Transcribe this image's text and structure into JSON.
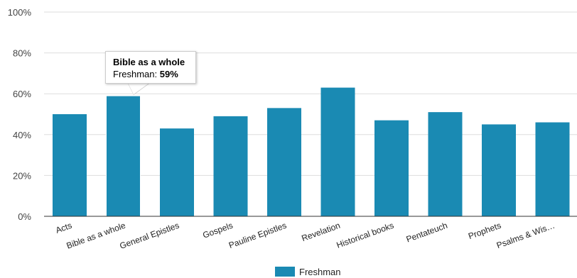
{
  "chart_data": {
    "type": "bar",
    "categories": [
      "Acts",
      "Bible as a whole",
      "General Epistles",
      "Gospels",
      "Pauline Epistles",
      "Revelation",
      "Historical books",
      "Pentateuch",
      "Prophets",
      "Psalms & Wis…"
    ],
    "series": [
      {
        "name": "Freshman",
        "values": [
          50,
          59,
          43,
          49,
          53,
          63,
          47,
          51,
          45,
          46
        ]
      }
    ],
    "ylim": [
      0,
      100
    ],
    "yticks": [
      "0%",
      "20%",
      "40%",
      "60%",
      "80%",
      "100%"
    ],
    "ytick_values": [
      0,
      20,
      40,
      60,
      80,
      100
    ],
    "grid": true,
    "legend": "bottom",
    "colors": {
      "bar": "#1a8ab3",
      "bar_highlight": "#1a8ab3",
      "grid": "#dddddd",
      "axis": "#333333"
    }
  },
  "tooltip": {
    "title": "Bible as a whole",
    "series_label": "Freshman: ",
    "value": "59%",
    "category_index": 1
  },
  "legend": {
    "label": "Freshman"
  }
}
